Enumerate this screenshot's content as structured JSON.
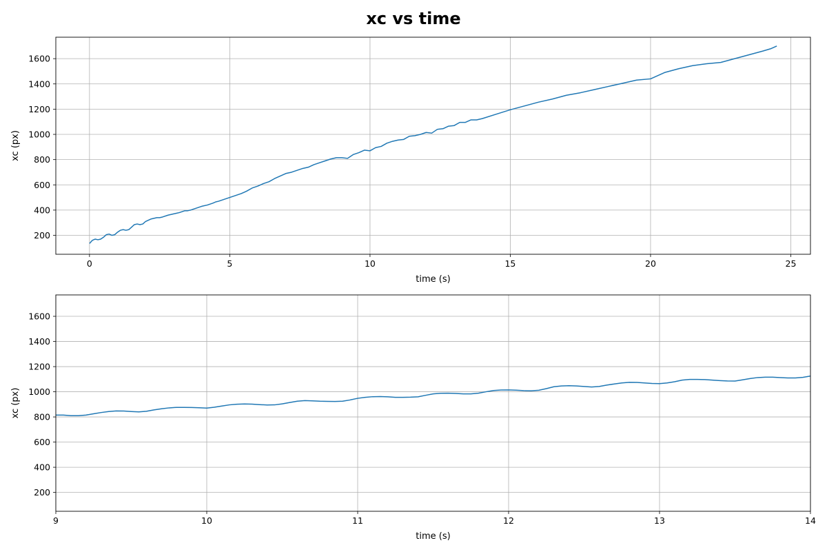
{
  "figure": {
    "title": "xc vs time"
  },
  "chart_data": [
    {
      "type": "line",
      "xlabel": "time (s)",
      "ylabel": "xc (px)",
      "xlim": [
        -1.2,
        25.7
      ],
      "ylim": [
        50,
        1770
      ],
      "xticks": [
        0,
        5,
        10,
        15,
        20,
        25
      ],
      "yticks": [
        200,
        400,
        600,
        800,
        1000,
        1200,
        1400,
        1600
      ],
      "grid": true,
      "legend": "none",
      "color": "#1f77b4",
      "series": [
        {
          "x": [
            0,
            0.1,
            0.2,
            0.3,
            0.4,
            0.5,
            0.6,
            0.7,
            0.8,
            0.9,
            1.0,
            1.1,
            1.2,
            1.3,
            1.4,
            1.5,
            1.6,
            1.7,
            1.8,
            1.9,
            2.0,
            2.2,
            2.4,
            2.5,
            2.6,
            2.8,
            3.0,
            3.2,
            3.4,
            3.5,
            3.6,
            3.8,
            4.0,
            4.2,
            4.4,
            4.5,
            4.6,
            4.8,
            5.0,
            5.2,
            5.4,
            5.5,
            5.6,
            5.8,
            6.0,
            6.2,
            6.4,
            6.6,
            6.8,
            7.0,
            7.2,
            7.4,
            7.6,
            7.8,
            8.0,
            8.2,
            8.4,
            8.6,
            8.8,
            9.0,
            9.2,
            9.4,
            9.6,
            9.8,
            10.0,
            10.2,
            10.4,
            10.6,
            10.8,
            11.0,
            11.2,
            11.4,
            11.6,
            11.8,
            12.0,
            12.2,
            12.4,
            12.6,
            12.8,
            13.0,
            13.2,
            13.4,
            13.6,
            13.8,
            14.0,
            14.5,
            15.0,
            15.5,
            16.0,
            16.5,
            17.0,
            17.5,
            18.0,
            18.5,
            19.0,
            19.5,
            20.0,
            20.5,
            21.0,
            21.5,
            22.0,
            22.5,
            23.0,
            23.5,
            24.0,
            24.3,
            24.5
          ],
          "y": [
            135,
            160,
            170,
            165,
            170,
            185,
            205,
            210,
            200,
            205,
            225,
            240,
            245,
            240,
            245,
            265,
            285,
            290,
            285,
            290,
            310,
            330,
            340,
            340,
            345,
            360,
            370,
            380,
            395,
            395,
            400,
            415,
            430,
            440,
            455,
            465,
            470,
            485,
            500,
            515,
            530,
            540,
            550,
            575,
            590,
            610,
            625,
            650,
            670,
            690,
            700,
            715,
            730,
            740,
            760,
            775,
            790,
            805,
            815,
            815,
            810,
            840,
            855,
            875,
            870,
            895,
            905,
            930,
            945,
            955,
            960,
            985,
            990,
            1000,
            1015,
            1010,
            1040,
            1045,
            1065,
            1070,
            1095,
            1095,
            1115,
            1115,
            1125,
            1160,
            1195,
            1225,
            1255,
            1280,
            1310,
            1330,
            1355,
            1380,
            1405,
            1430,
            1440,
            1490,
            1520,
            1545,
            1560,
            1570,
            1600,
            1630,
            1660,
            1680,
            1700
          ]
        }
      ]
    },
    {
      "type": "line",
      "xlabel": "time (s)",
      "ylabel": "xc (px)",
      "xlim": [
        9,
        14
      ],
      "ylim": [
        50,
        1770
      ],
      "xticks": [
        9,
        10,
        11,
        12,
        13,
        14
      ],
      "yticks": [
        200,
        400,
        600,
        800,
        1000,
        1200,
        1400,
        1600
      ],
      "grid": true,
      "legend": "none",
      "color": "#1f77b4",
      "series": [
        {
          "x": [
            9.0,
            9.05,
            9.1,
            9.15,
            9.2,
            9.25,
            9.3,
            9.35,
            9.4,
            9.45,
            9.5,
            9.55,
            9.6,
            9.65,
            9.7,
            9.75,
            9.8,
            9.85,
            9.9,
            9.95,
            10.0,
            10.05,
            10.1,
            10.15,
            10.2,
            10.25,
            10.3,
            10.35,
            10.4,
            10.45,
            10.5,
            10.55,
            10.6,
            10.65,
            10.7,
            10.75,
            10.8,
            10.85,
            10.9,
            10.95,
            11.0,
            11.05,
            11.1,
            11.15,
            11.2,
            11.25,
            11.3,
            11.35,
            11.4,
            11.45,
            11.5,
            11.55,
            11.6,
            11.65,
            11.7,
            11.75,
            11.8,
            11.85,
            11.9,
            11.95,
            12.0,
            12.05,
            12.1,
            12.15,
            12.2,
            12.25,
            12.3,
            12.35,
            12.4,
            12.45,
            12.5,
            12.55,
            12.6,
            12.65,
            12.7,
            12.75,
            12.8,
            12.85,
            12.9,
            12.95,
            13.0,
            13.05,
            13.1,
            13.15,
            13.2,
            13.25,
            13.3,
            13.35,
            13.4,
            13.45,
            13.5,
            13.55,
            13.6,
            13.65,
            13.7,
            13.75,
            13.8,
            13.85,
            13.9,
            13.95,
            14.0
          ],
          "y": [
            815,
            815,
            810,
            810,
            815,
            825,
            835,
            843,
            848,
            847,
            843,
            840,
            845,
            856,
            865,
            872,
            876,
            876,
            875,
            873,
            870,
            877,
            887,
            896,
            901,
            903,
            902,
            898,
            895,
            896,
            904,
            915,
            925,
            930,
            928,
            925,
            924,
            923,
            925,
            935,
            948,
            956,
            961,
            962,
            960,
            956,
            956,
            957,
            960,
            972,
            983,
            988,
            989,
            987,
            983,
            983,
            989,
            1000,
            1010,
            1014,
            1015,
            1013,
            1009,
            1008,
            1012,
            1025,
            1040,
            1046,
            1048,
            1046,
            1042,
            1038,
            1042,
            1053,
            1062,
            1070,
            1075,
            1074,
            1070,
            1066,
            1065,
            1070,
            1080,
            1093,
            1098,
            1098,
            1097,
            1093,
            1089,
            1086,
            1085,
            1095,
            1105,
            1113,
            1116,
            1116,
            1113,
            1110,
            1110,
            1115,
            1125
          ]
        }
      ]
    }
  ]
}
